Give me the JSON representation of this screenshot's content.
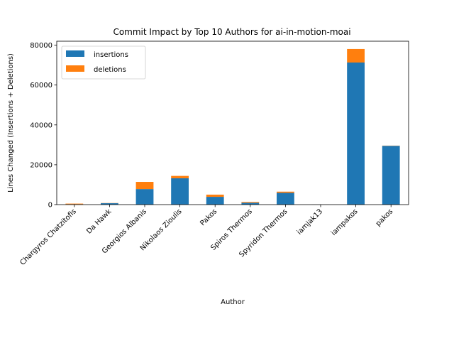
{
  "chart_data": {
    "type": "bar",
    "stacked": true,
    "title": "Commit Impact by Top 10 Authors for ai-in-motion-moai",
    "xlabel": "Author",
    "ylabel": "Lines Changed (Insertions + Deletions)",
    "ylim": [
      0,
      82000
    ],
    "yticks": [
      0,
      20000,
      40000,
      60000,
      80000
    ],
    "grid": false,
    "legend_position": "top-left",
    "categories": [
      "Chargyros Chatzitofis",
      "Da Hawk",
      "Georgios Albanis",
      "Nikolaos Zioulis",
      "Pakos",
      "Spiros Thermos",
      "Spyridon Thermos",
      "iamjak13",
      "iampakos",
      "pakos"
    ],
    "series": [
      {
        "name": "insertions",
        "color": "#1f77b4",
        "values": [
          200,
          700,
          7800,
          13200,
          3900,
          900,
          5900,
          50,
          71300,
          29500
        ]
      },
      {
        "name": "deletions",
        "color": "#ff7f0e",
        "values": [
          300,
          100,
          3600,
          1200,
          1100,
          400,
          600,
          20,
          6800,
          100
        ]
      }
    ]
  }
}
